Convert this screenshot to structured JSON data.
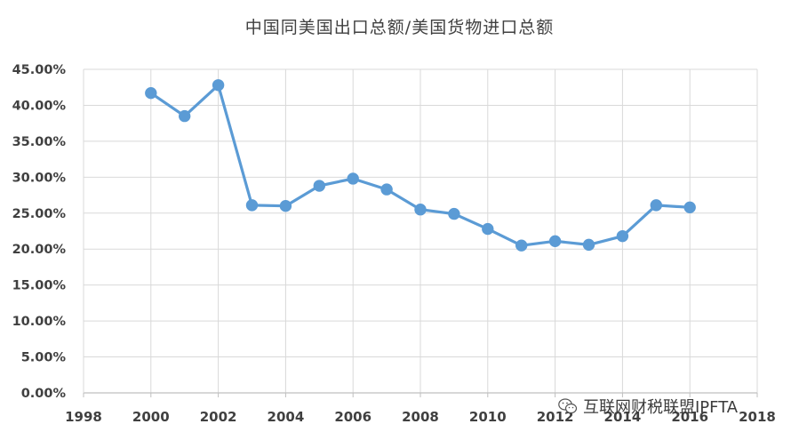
{
  "chart_data": {
    "type": "line",
    "title": "中国同美国出口总额/美国货物进口总额",
    "xlabel": "",
    "ylabel": "",
    "xlim": [
      1998,
      2018
    ],
    "ylim": [
      0,
      45
    ],
    "x_ticks": [
      "1998",
      "2000",
      "2002",
      "2004",
      "2006",
      "2008",
      "2010",
      "2012",
      "2014",
      "2016",
      "2018"
    ],
    "y_ticks": [
      "0.00%",
      "5.00%",
      "10.00%",
      "15.00%",
      "20.00%",
      "25.00%",
      "30.00%",
      "35.00%",
      "40.00%",
      "45.00%"
    ],
    "grid": true,
    "series": [
      {
        "color": "#5b9bd5",
        "x": [
          2000,
          2001,
          2002,
          2003,
          2004,
          2005,
          2006,
          2007,
          2008,
          2009,
          2010,
          2011,
          2012,
          2013,
          2014,
          2015,
          2016
        ],
        "y": [
          41.7,
          38.5,
          42.8,
          26.1,
          26.0,
          28.8,
          29.8,
          28.3,
          25.5,
          24.9,
          22.8,
          20.5,
          21.1,
          20.6,
          21.8,
          26.1,
          25.8
        ]
      }
    ]
  },
  "watermark": {
    "icon": "wechat-icon",
    "text": "互联网财税联盟IPFTA"
  }
}
